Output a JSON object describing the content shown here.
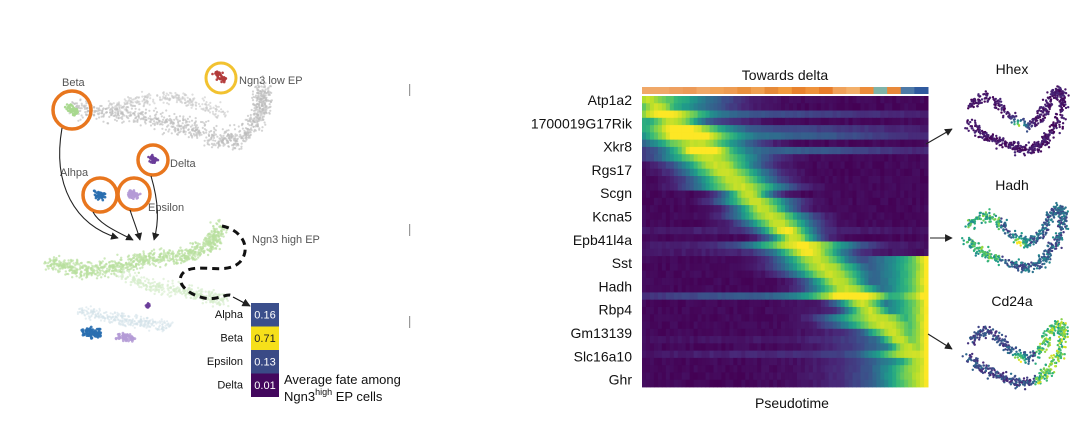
{
  "umap_labels": {
    "beta": "Beta",
    "ngn3_low": "Ngn3 low EP",
    "delta": "Delta",
    "alhpa": "Alhpa",
    "epsilon": "Epsilon",
    "ngn3_high": "Ngn3 high EP"
  },
  "fate_table": {
    "rows": [
      {
        "label": "Alpha",
        "value": "0.16",
        "color": "#3b4f8c",
        "text_color": "#ffffff"
      },
      {
        "label": "Beta",
        "value": "0.71",
        "color": "#f6e01a",
        "text_color": "#222222"
      },
      {
        "label": "Epsilon",
        "value": "0.13",
        "color": "#3a4a86",
        "text_color": "#ffffff"
      },
      {
        "label": "Delta",
        "value": "0.01",
        "color": "#43085e",
        "text_color": "#ffffff"
      }
    ],
    "caption_line1": "Average fate among",
    "caption_ngn3": "Ngn3",
    "caption_sup": "high",
    "caption_rest": " EP cells"
  },
  "heatmap": {
    "title": "Towards delta",
    "xlabel": "Pseudotime",
    "genes": [
      "Atp1a2",
      "1700019G17Rik",
      "Xkr8",
      "Rgs17",
      "Scgn",
      "Kcna5",
      "Epb41l4a",
      "Sst",
      "Hadh",
      "Rbp4",
      "Gm13139",
      "Slc16a10",
      "Ghr"
    ]
  },
  "feature_plots": [
    {
      "title": "Hhex"
    },
    {
      "title": "Hadh"
    },
    {
      "title": "Cd24a"
    }
  ],
  "colors": {
    "orange_circle": "#e8761e",
    "yellow_circle": "#f2c230",
    "beta_green": "#a8d88e",
    "pale_green": "#cfe9bf",
    "alpha_blue": "#2a6fb0",
    "epsilon_purple": "#b49bd6",
    "delta_purple": "#6a3d9a",
    "ngn3_low_red": "#b23a3a"
  }
}
